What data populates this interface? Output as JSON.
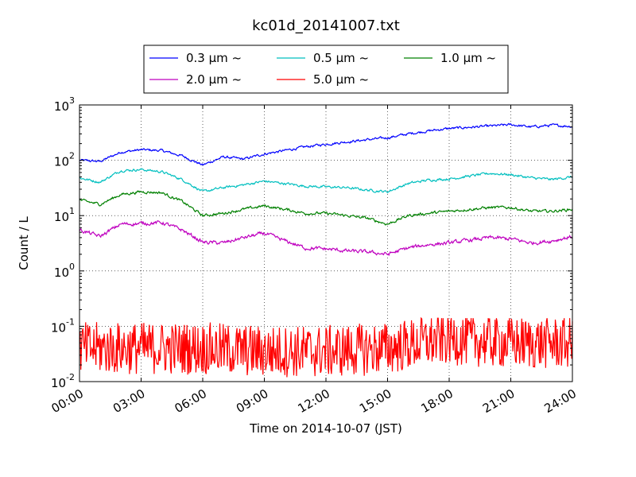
{
  "chart_data": {
    "type": "line",
    "title": "kc01d_20141007.txt",
    "xlabel": "Time on 2014-10-07 (JST)",
    "ylabel": "Count / L",
    "yscale": "log",
    "ylim": [
      0.01,
      1000
    ],
    "xlim": [
      "00:00",
      "24:00"
    ],
    "grid": true,
    "legend_position": "top, above plot",
    "x_ticks": [
      "00:00",
      "03:00",
      "06:00",
      "09:00",
      "12:00",
      "15:00",
      "18:00",
      "21:00",
      "24:00"
    ],
    "y_ticks": [
      {
        "base": "10",
        "exp": "-2"
      },
      {
        "base": "10",
        "exp": "-1"
      },
      {
        "base": "10",
        "exp": "0"
      },
      {
        "base": "10",
        "exp": "1"
      },
      {
        "base": "10",
        "exp": "2"
      },
      {
        "base": "10",
        "exp": "3"
      }
    ],
    "series": [
      {
        "name": "0.3 μm ~",
        "color": "#0000ff",
        "noise": 0.04,
        "x": [
          "00:00",
          "01:00",
          "02:00",
          "03:00",
          "04:00",
          "05:00",
          "06:00",
          "07:00",
          "08:00",
          "09:00",
          "10:00",
          "11:00",
          "12:00",
          "13:00",
          "14:00",
          "15:00",
          "16:00",
          "17:00",
          "18:00",
          "19:00",
          "20:00",
          "21:00",
          "22:00",
          "23:00",
          "24:00"
        ],
        "values": [
          100,
          95,
          140,
          155,
          150,
          120,
          82,
          115,
          105,
          130,
          150,
          175,
          195,
          215,
          235,
          255,
          300,
          340,
          375,
          395,
          415,
          440,
          400,
          430,
          410
        ]
      },
      {
        "name": "0.5 μm ~",
        "color": "#00bfbf",
        "noise": 0.04,
        "x": [
          "00:00",
          "01:00",
          "02:00",
          "03:00",
          "04:00",
          "05:00",
          "06:00",
          "07:00",
          "08:00",
          "09:00",
          "10:00",
          "11:00",
          "12:00",
          "13:00",
          "14:00",
          "15:00",
          "16:00",
          "17:00",
          "18:00",
          "19:00",
          "20:00",
          "21:00",
          "22:00",
          "23:00",
          "24:00"
        ],
        "values": [
          48,
          40,
          65,
          68,
          62,
          45,
          27,
          32,
          36,
          42,
          38,
          34,
          33,
          32,
          29,
          27,
          38,
          44,
          46,
          52,
          58,
          55,
          48,
          45,
          50
        ]
      },
      {
        "name": "1.0 μm ~",
        "color": "#008000",
        "noise": 0.045,
        "x": [
          "00:00",
          "01:00",
          "02:00",
          "03:00",
          "04:00",
          "05:00",
          "06:00",
          "07:00",
          "08:00",
          "09:00",
          "10:00",
          "11:00",
          "12:00",
          "13:00",
          "14:00",
          "15:00",
          "16:00",
          "17:00",
          "18:00",
          "19:00",
          "20:00",
          "21:00",
          "22:00",
          "23:00",
          "24:00"
        ],
        "values": [
          19,
          16,
          24,
          27,
          26,
          18,
          10,
          11,
          13,
          15,
          13,
          11,
          11,
          10,
          9,
          7,
          10,
          11,
          12,
          13,
          14,
          14,
          12,
          12,
          13
        ]
      },
      {
        "name": "2.0 μm ~",
        "color": "#bf00bf",
        "noise": 0.06,
        "x": [
          "00:00",
          "01:00",
          "02:00",
          "03:00",
          "04:00",
          "05:00",
          "06:00",
          "07:00",
          "08:00",
          "09:00",
          "10:00",
          "11:00",
          "12:00",
          "13:00",
          "14:00",
          "15:00",
          "16:00",
          "17:00",
          "18:00",
          "19:00",
          "20:00",
          "21:00",
          "22:00",
          "23:00",
          "24:00"
        ],
        "values": [
          5.5,
          4.2,
          7.0,
          7.2,
          7.5,
          5.5,
          3.3,
          3.2,
          4.0,
          4.8,
          3.5,
          2.6,
          2.5,
          2.3,
          2.2,
          2.0,
          2.6,
          3.0,
          3.2,
          3.6,
          4.0,
          3.8,
          3.2,
          3.5,
          4.2
        ]
      },
      {
        "name": "5.0 μm ~",
        "color": "#ff0000",
        "noise": "spiky",
        "x": [
          "00:00",
          "03:00",
          "06:00",
          "09:00",
          "12:00",
          "15:00",
          "18:00",
          "21:00",
          "24:00"
        ],
        "values": [
          0.04,
          0.04,
          0.04,
          0.035,
          0.035,
          0.04,
          0.06,
          0.05,
          0.05
        ],
        "min_value": 0.012,
        "max_value": 0.14
      }
    ]
  }
}
